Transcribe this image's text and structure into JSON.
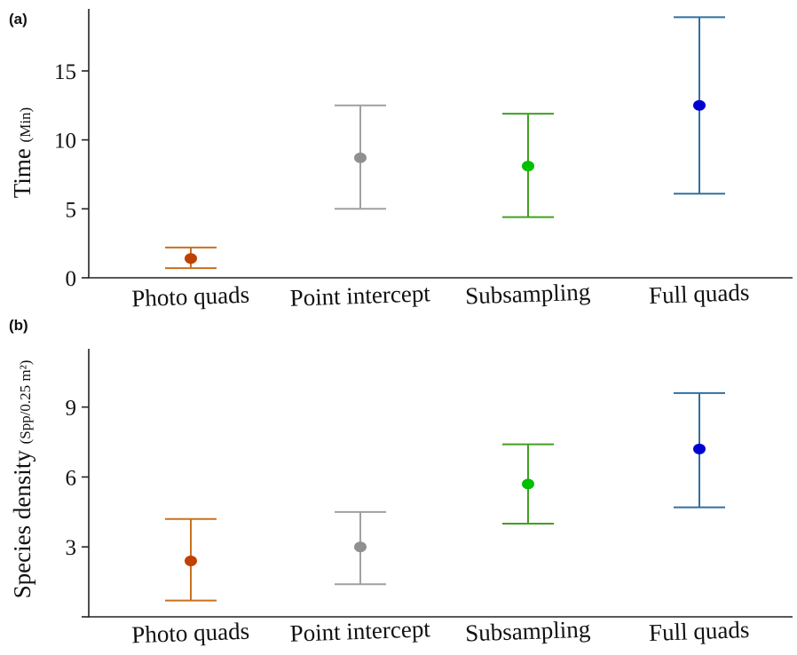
{
  "chart_data": [
    {
      "type": "errorbar",
      "panel_label": "(a)",
      "ylabel": "Time",
      "ylabel_unit": "(Min)",
      "categories": [
        "Photo quads",
        "Point intercept",
        "Subsampling",
        "Full quads"
      ],
      "colors": [
        "#c04000",
        "#909090",
        "#00c000",
        "#0000d0"
      ],
      "bar_colors": [
        "#c87020",
        "#a0a0a0",
        "#40a020",
        "#3070a0"
      ],
      "mean": [
        1.4,
        8.7,
        8.1,
        12.5
      ],
      "lower": [
        0.7,
        5.0,
        4.4,
        6.1
      ],
      "upper": [
        2.2,
        12.5,
        11.9,
        18.9
      ],
      "yticks": [
        0,
        5,
        10,
        15
      ],
      "ytick_labels": [
        "0",
        "5",
        "10",
        "15"
      ],
      "ylim": [
        0,
        19.5
      ]
    },
    {
      "type": "errorbar",
      "panel_label": "(b)",
      "ylabel": "Species density",
      "ylabel_unit": "(Spp/0.25 m²)",
      "categories": [
        "Photo quads",
        "Point intercept",
        "Subsampling",
        "Full quads"
      ],
      "colors": [
        "#c04000",
        "#909090",
        "#00c000",
        "#0000d0"
      ],
      "bar_colors": [
        "#c87020",
        "#a0a0a0",
        "#40a020",
        "#3070a0"
      ],
      "mean": [
        2.4,
        3.0,
        5.7,
        7.2
      ],
      "lower": [
        0.7,
        1.4,
        4.0,
        4.7
      ],
      "upper": [
        4.2,
        4.5,
        7.4,
        9.6
      ],
      "yticks": [
        0,
        3,
        6,
        9
      ],
      "ytick_labels": [
        "",
        "3",
        "6",
        "9"
      ],
      "ylim": [
        0,
        11.5
      ]
    }
  ]
}
